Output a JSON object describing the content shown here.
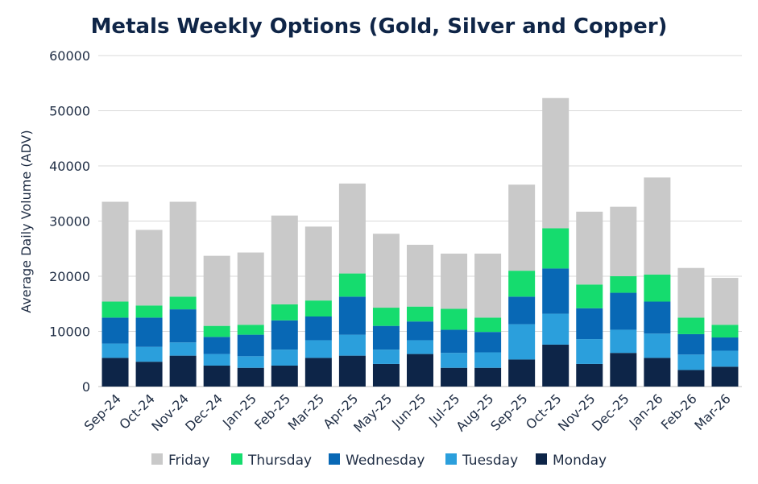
{
  "chart_data": {
    "type": "bar",
    "stacked": true,
    "title": "Metals Weekly Options (Gold, Silver and Copper)",
    "xlabel": "",
    "ylabel": "Average Daily Volume (ADV)",
    "ylim": [
      0,
      60000
    ],
    "yticks": [
      0,
      10000,
      20000,
      30000,
      40000,
      50000,
      60000
    ],
    "ytick_labels": [
      "0",
      "10000",
      "20000",
      "30000",
      "40000",
      "50000",
      "60000"
    ],
    "grid": true,
    "legend_position": "bottom",
    "categories": [
      "Sep-24",
      "Oct-24",
      "Nov-24",
      "Dec-24",
      "Jan-25",
      "Feb-25",
      "Mar-25",
      "Apr-25",
      "May-25",
      "Jun-25",
      "Jul-25",
      "Aug-25",
      "Sep-25",
      "Oct-25",
      "Nov-25",
      "Dec-25",
      "Jan-26",
      "Feb-26",
      "Mar-26"
    ],
    "series": [
      {
        "name": "Monday",
        "color": "#0d2548",
        "values": [
          5200,
          4500,
          5600,
          3800,
          3400,
          3800,
          5200,
          5600,
          4100,
          5900,
          3400,
          3400,
          4900,
          7600,
          4100,
          6100,
          5200,
          3000,
          3600
        ]
      },
      {
        "name": "Tuesday",
        "color": "#2b9fdc",
        "values": [
          2600,
          2700,
          2400,
          2100,
          2100,
          2900,
          3200,
          3800,
          2600,
          2500,
          2700,
          2800,
          6400,
          5600,
          4500,
          4200,
          4400,
          2800,
          2900
        ]
      },
      {
        "name": "Wednesday",
        "color": "#0868b5",
        "values": [
          4700,
          5300,
          6000,
          3100,
          3900,
          5300,
          4300,
          6900,
          4300,
          3400,
          4200,
          3700,
          5000,
          8200,
          5600,
          6700,
          5800,
          3700,
          2400
        ]
      },
      {
        "name": "Thursday",
        "color": "#15dc6e",
        "values": [
          2900,
          2200,
          2300,
          2000,
          1800,
          2900,
          2900,
          4200,
          3300,
          2700,
          3800,
          2600,
          4700,
          7300,
          4300,
          3000,
          4900,
          3000,
          2300
        ]
      },
      {
        "name": "Friday",
        "color": "#c9c9c9",
        "values": [
          18100,
          13700,
          17200,
          12700,
          13100,
          16100,
          13400,
          16300,
          13400,
          11200,
          10000,
          11600,
          15600,
          23600,
          13200,
          12600,
          17600,
          9000,
          8500
        ]
      }
    ],
    "legend_order": [
      "Friday",
      "Thursday",
      "Wednesday",
      "Tuesday",
      "Monday"
    ]
  }
}
